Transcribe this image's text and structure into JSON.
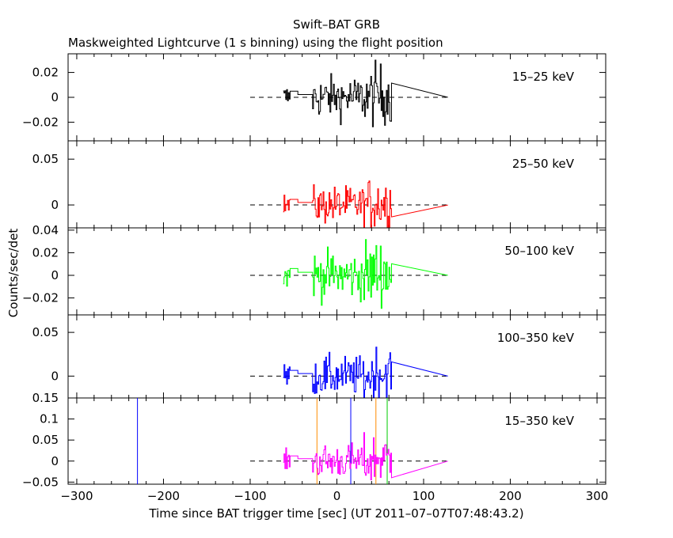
{
  "header": {
    "title": "Swift–BAT GRB",
    "subtitle": "Maskweighted Lightcurve (1 s binning) using the flight position"
  },
  "chart_data": {
    "type": "line",
    "title": "Swift–BAT GRB",
    "subtitle": "Maskweighted Lightcurve (1 s binning) using the flight position",
    "xlabel": "Time since BAT trigger time [sec] (UT 2011–07–07T07:48:43.2)",
    "ylabel": "Counts/sec/det",
    "xlim": [
      -310,
      310
    ],
    "xticks": [
      -300,
      -200,
      -100,
      0,
      100,
      200,
      300
    ],
    "xtick_labels": [
      "−300",
      "−200",
      "−100",
      "0",
      "100",
      "200",
      "300"
    ],
    "grid": false,
    "panels": [
      {
        "band": "15–25 keV",
        "color": "#000000",
        "ylim": [
          -0.035,
          0.035
        ],
        "yticks": [
          -0.02,
          0,
          0.02
        ],
        "ytick_labels": [
          "−0.02",
          "0",
          "0.02"
        ],
        "amplitude": 0.009,
        "markers": []
      },
      {
        "band": "25–50 keV",
        "color": "#ff0000",
        "ylim": [
          -0.025,
          0.07
        ],
        "yticks": [
          0,
          0.05
        ],
        "ytick_labels": [
          "0",
          "0.05"
        ],
        "amplitude": 0.011,
        "markers": []
      },
      {
        "band": "50–100 keV",
        "color": "#00ff00",
        "ylim": [
          -0.035,
          0.042
        ],
        "yticks": [
          -0.02,
          0,
          0.02,
          0.04
        ],
        "ytick_labels": [
          "−0.02",
          "0",
          "0.02",
          "0.04"
        ],
        "amplitude": 0.011,
        "markers": []
      },
      {
        "band": "100–350 keV",
        "color": "#0000ff",
        "ylim": [
          -0.025,
          0.07
        ],
        "yticks": [
          0,
          0.05
        ],
        "ytick_labels": [
          "0",
          "0.05"
        ],
        "amplitude": 0.012,
        "markers": []
      },
      {
        "band": "15–350 keV",
        "color": "#ff00ff",
        "ylim": [
          -0.055,
          0.15
        ],
        "yticks": [
          -0.05,
          0,
          0.05,
          0.1,
          0.15
        ],
        "ytick_labels": [
          "−0.05",
          "0",
          "0.05",
          "0.1",
          "0.15"
        ],
        "amplitude": 0.022,
        "markers": [
          {
            "x": -230,
            "color": "#0000ff"
          },
          {
            "x": -23,
            "color": "#ff8c00"
          },
          {
            "x": 16,
            "color": "#0000ff"
          },
          {
            "x": 45,
            "color": "#ff8c00"
          },
          {
            "x": 58,
            "color": "#00cc00"
          }
        ]
      }
    ],
    "series_x_range": [
      -62,
      63
    ],
    "zero_line_x_range": [
      -100,
      128
    ]
  }
}
